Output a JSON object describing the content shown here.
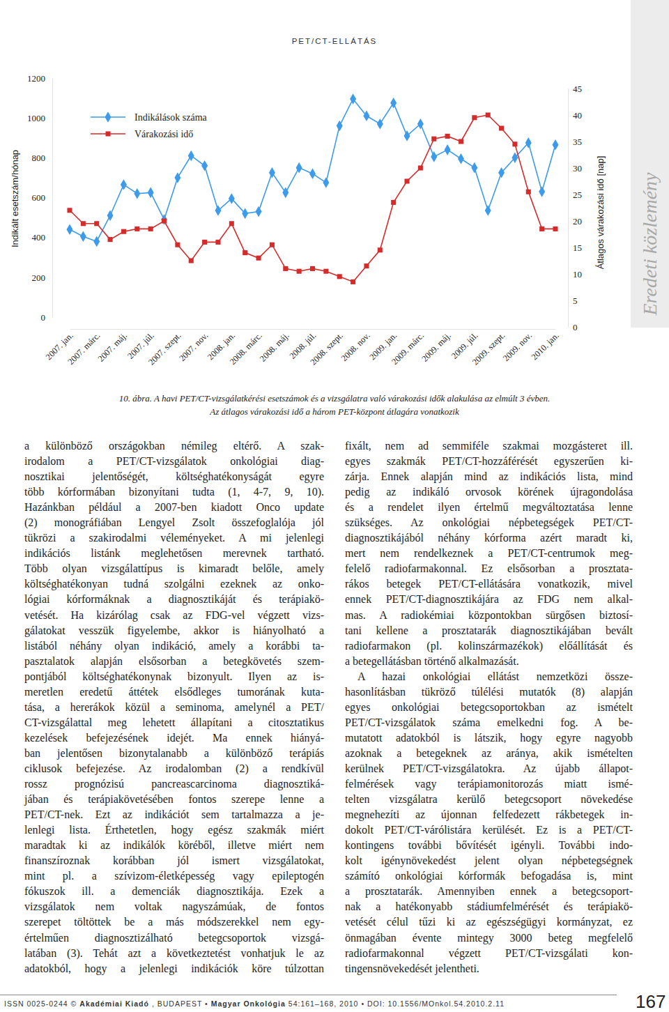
{
  "header": {
    "running_title": "PET/CT-ELLÁTÁS",
    "side_label": "Eredeti közlemény"
  },
  "chart_data": {
    "type": "line",
    "ylabel": "Indikált esetszám/hónap",
    "y2label": "Átlagos várakozási idő [nap]",
    "categories": [
      "2007. jan.",
      null,
      "2007. márc.",
      null,
      "2007. máj.",
      null,
      "2007. júl.",
      null,
      "2007. szept.",
      null,
      "2007. nov.",
      null,
      "2008. jan.",
      null,
      "2008. márc.",
      null,
      "2008. máj.",
      null,
      "2008. júl.",
      null,
      "2008. szept.",
      null,
      "2008. nov.",
      null,
      "2009. jan.",
      null,
      "2009. márc.",
      null,
      "2009. máj.",
      null,
      "2009. júl.",
      null,
      "2009. szept.",
      null,
      "2009. nov.",
      null,
      "2010. jan."
    ],
    "series": [
      {
        "name": "Indikálások száma",
        "color": "#3d9be9",
        "marker": "diamond",
        "values": [
          440,
          405,
          380,
          510,
          665,
          620,
          625,
          490,
          700,
          810,
          760,
          535,
          595,
          520,
          530,
          725,
          625,
          750,
          720,
          675,
          960,
          1095,
          1010,
          970,
          1075,
          910,
          970,
          805,
          840,
          795,
          750,
          535,
          725,
          800,
          875,
          630,
          865
        ]
      },
      {
        "name": "Várakozási idő",
        "color": "#d42b2b",
        "marker": "square",
        "axis": "y2",
        "values": [
          22,
          19.5,
          19.5,
          16.5,
          18,
          18.5,
          18.5,
          20,
          15.5,
          12.5,
          16,
          16,
          19.5,
          14,
          13,
          15.5,
          11,
          10.5,
          11,
          10.5,
          9.5,
          8.5,
          11.5,
          14.5,
          23.5,
          27.5,
          30,
          35.5,
          36,
          35,
          39.5,
          40,
          37.5,
          34.5,
          25.5,
          18.5,
          18.5
        ]
      }
    ],
    "ylim": [
      0,
      1200
    ],
    "yticks": [
      0,
      200,
      400,
      600,
      800,
      1000,
      1200
    ],
    "y2lim": [
      0,
      45
    ],
    "y2ticks": [
      0,
      5,
      10,
      15,
      20,
      25,
      30,
      35,
      40,
      45
    ],
    "legend": "top-left",
    "grid": false
  },
  "caption": {
    "lines": [
      "10. ábra. A havi PET/CT-vizsgálatkérési esetszámok és a vizsgálatra való várakozási idők alakulása az elmúlt 3 évben.",
      "Az átlagos várakozási idő a három PET-központ átlagára vonatkozik"
    ]
  },
  "body": {
    "columns": [
      {
        "paragraphs": [
          {
            "lines": [
              "a különböző országokban némileg eltérő. A szak-",
              "irodalom a PET/CT-vizsgálatok onkológiai diag-",
              "nosztikai jelentőségét, költséghatékonyságát egyre",
              "több kórformában bizonyítani tudta (1, 4-7, 9, 10).",
              "Hazánkban például a 2007-ben kiadott Onco update",
              "(2) monográfiában Lengyel Zsolt összefoglalója jól",
              "tükrözi a szakirodalmi véleményeket. A mi jelenlegi",
              "indikációs listánk meglehetősen merevnek tartható.",
              "Több olyan vizsgálattípus is kimaradt belőle, amely",
              "költséghatékonyan tudná szolgálni ezeknek az onko-",
              "lógiai kórformáknak a diagnosztikáját és terápiakö-",
              "vetését. Ha kizárólag csak az FDG-vel végzett vizs-",
              "gálatokat vesszük figyelembe, akkor is hiányolható a",
              "listából néhány olyan indikáció, amely a korábbi ta-",
              "pasztalatok alapján elsősorban a betegkövetés szem-",
              "pontjából költséghatékonynak bizonyult. Ilyen az is-",
              "meretlen eredetű áttétek elsődleges tumorának kuta-",
              "tása, a hererákok közül a seminoma, amelynél a PET/",
              "CT-vizsgálattal meg lehetett állapítani a citosztatikus",
              "kezelések befejezésének idejét. Ma ennek hiányá-",
              "ban jelentősen bizonytalanabb a különböző terápiás",
              "ciklusok befejezése. Az irodalomban (2) a rendkívül",
              "rossz prognózisú pancreascarcinoma diagnosztiká-",
              "jában és terápiakövetésében fontos szerepe lenne a",
              "PET/CT-nek. Ezt az indikációt sem tartalmazza a je-",
              "lenlegi lista. Érthetetlen, hogy egész szakmák miért",
              "maradtak ki az indikálók köréből, illetve miért nem",
              "finanszíroznak korábban jól ismert vizsgálatokat,",
              "mint pl. a szívizom-életképesség vagy epileptogén",
              "fókuszok ill. a demenciák diagnosztikája. Ezek a",
              "vizsgálatok nem voltak nagyszámúak, de fontos",
              "szerepet töltöttek be a más módszerekkel nem egy-",
              "értelműen diagnosztizálható betegcsoportok vizsgá-",
              "latában (3). Tehát azt a következtetést vonhatjuk le az",
              "adatokból, hogy a jelenlegi indikációk köre túlzottan"
            ]
          }
        ]
      },
      {
        "paragraphs": [
          {
            "lines": [
              "fixált, nem ad semmiféle szakmai mozgásteret ill.",
              "egyes szakmák PET/CT-hozzáférését egyszerűen ki-",
              "zárja. Ennek alapján mind az indikációs lista, mind",
              "pedig az indikáló orvosok körének újragondolása",
              "és a rendelet ilyen értelmű megváltoztatása lenne",
              "szükséges. Az onkológiai népbetegségek PET/CT-",
              "diagnosztikájából néhány kórforma azért maradt ki,",
              "mert nem rendelkeznek a PET/CT-centrumok meg-",
              "felelő radiofarmakonnal. Ez elsősorban a prosztata-",
              "rákos betegek PET/CT-ellátására vonatkozik, mivel",
              "ennek PET/CT-diagnosztikájára az FDG nem alkal-",
              "mas. A radiokémiai központokban sürgősen biztosí-",
              "tani kellene a prosztatarák diagnosztikájában bevált",
              "radiofarmakon (pl. kolinszármazékok) előállítását és",
              "a betegellátásban történő alkalmazását."
            ]
          },
          {
            "lines": [
              "A hazai onkológiai ellátást nemzetközi össze-",
              "hasonlításban tükröző túlélési mutatók (8) alapján",
              "egyes onkológiai betegcsoportokban az ismételt",
              "PET/CT-vizsgálatok száma emelkedni fog. A be-",
              "mutatott adatokból is látszik, hogy egyre nagyobb",
              "azoknak a betegeknek az aránya, akik ismételten",
              "kerülnek PET/CT-vizsgálatokra. Az újabb állapot-",
              "felmérések vagy terápiamonitorozás miatt ismé-",
              "telten vizsgálatra kerülő betegcsoport növekedése",
              "megnehezíti az újonnan felfedezett rákbetegek in-",
              "dokolt PET/CT-várólistára kerülését. Ez is a PET/CT-",
              "kontingens további bővítését igényli. További indo-",
              "kolt igénynövekedést jelent olyan népbetegségnek",
              "számító onkológiai kórformák befogadása is, mint",
              "a prosztatarák. Amennyiben ennek a betegcsoport-",
              "nak a hatékonyabb stádiumfelmérését és terápiakö-",
              "vetését célul tűzi ki az egészségügyi kormányzat, ez",
              "önmagában évente mintegy 3000 beteg megfelelő",
              "radiofarmakonnal végzett PET/CT-vizsgálati kon-",
              "tingensnövekedését jelentheti."
            ]
          }
        ]
      }
    ]
  },
  "footer": {
    "issn": "ISSN 0025-0244 ©",
    "publisher": "Akadémiai Kiadó",
    "city": ", BUDAPEST •",
    "journal": "Magyar Onkológia",
    "citation": "54:161–168, 2010 • DOI: 10.1556/MOnkol.54.2010.2.11",
    "page": 167
  }
}
